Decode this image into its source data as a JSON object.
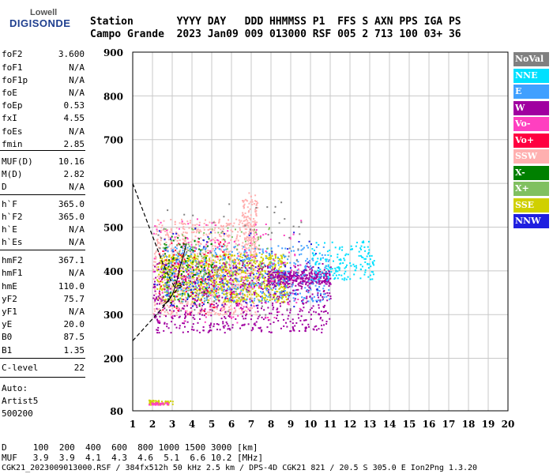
{
  "logo": {
    "top": "Lowell",
    "main": "DIGISONDE"
  },
  "header": {
    "row1": "Station       YYYY DAY   DDD HHMMSS P1  FFS S AXN PPS IGA PS",
    "row2": "Campo Grande  2023 Jan09 009 013000 RSF 005 2 713 100 03+ 36"
  },
  "params": [
    {
      "name": "foF2",
      "value": "3.600"
    },
    {
      "name": "foF1",
      "value": "N/A"
    },
    {
      "name": "foF1p",
      "value": "N/A"
    },
    {
      "name": "foE",
      "value": "N/A"
    },
    {
      "name": "foEp",
      "value": "0.53"
    },
    {
      "name": "fxI",
      "value": "4.55"
    },
    {
      "name": "foEs",
      "value": "N/A"
    },
    {
      "name": "fmin",
      "value": "2.85"
    },
    {
      "name": "MUF(D)",
      "value": "10.16"
    },
    {
      "name": "M(D)",
      "value": "2.82"
    },
    {
      "name": "D",
      "value": "N/A"
    },
    {
      "name": "h`F",
      "value": "365.0"
    },
    {
      "name": "h`F2",
      "value": "365.0"
    },
    {
      "name": "h`E",
      "value": "N/A"
    },
    {
      "name": "h`Es",
      "value": "N/A"
    },
    {
      "name": "hmF2",
      "value": "367.1"
    },
    {
      "name": "hmF1",
      "value": "N/A"
    },
    {
      "name": "hmE",
      "value": "110.0"
    },
    {
      "name": "yF2",
      "value": "75.7"
    },
    {
      "name": "yF1",
      "value": "N/A"
    },
    {
      "name": "yE",
      "value": "20.0"
    },
    {
      "name": "B0",
      "value": "87.5"
    },
    {
      "name": "B1",
      "value": "1.35"
    },
    {
      "name": "C-level",
      "value": "22"
    }
  ],
  "auto": {
    "line1": "Auto:",
    "line2": "Artist5",
    "line3": "500200"
  },
  "legend": [
    {
      "label": "NoVal",
      "color": "#808080"
    },
    {
      "label": "NNE",
      "color": "#00e0ff"
    },
    {
      "label": "E",
      "color": "#40a0ff"
    },
    {
      "label": "W",
      "color": "#a000a0"
    },
    {
      "label": "Vo-",
      "color": "#ff40c0"
    },
    {
      "label": "Vo+",
      "color": "#ff0040"
    },
    {
      "label": "SSW",
      "color": "#ffb0b0"
    },
    {
      "label": "X-",
      "color": "#008000"
    },
    {
      "label": "X+",
      "color": "#80c060"
    },
    {
      "label": "SSE",
      "color": "#d0d000"
    },
    {
      "label": "NNW",
      "color": "#2020e0"
    }
  ],
  "footer": {
    "row1": "D     100  200  400  600  800 1000 1500 3000 [km]",
    "row2": "MUF   3.9  3.9  4.1  4.3  4.6  5.1  6.6 10.2 [MHz]",
    "row3": "CGK21_2023009013000.RSF / 384fx512h 50 kHz 2.5 km / DPS-4D CGK21 821 / 20.5 S 305.0 E Ion2Png 1.3.20"
  },
  "chart_data": {
    "type": "scatter",
    "xlim": [
      1,
      20
    ],
    "ylim": [
      80,
      900
    ],
    "x_ticks": [
      1,
      2,
      3,
      4,
      5,
      6,
      7,
      8,
      9,
      10,
      11,
      12,
      13,
      14,
      15,
      16,
      17,
      18,
      19,
      20
    ],
    "y_ticks": [
      80,
      200,
      300,
      400,
      500,
      600,
      700,
      800,
      900
    ],
    "grid": true,
    "legend_position": "right",
    "x_tick_labels": [
      "1",
      "2",
      "3",
      "4",
      "5",
      "6",
      "7",
      "8",
      "9",
      "10",
      "11",
      "12",
      "13",
      "14",
      "15",
      "16",
      "17",
      "18",
      "19",
      "20"
    ],
    "y_tick_labels": [
      "80",
      "200",
      "300",
      "400",
      "500",
      "600",
      "700",
      "800",
      "900"
    ],
    "clusters": [
      {
        "color": "#ffb0b0",
        "xmin": 2.0,
        "xmax": 7.3,
        "ymin": 300,
        "ymax": 520,
        "n": 900
      },
      {
        "color": "#ffb0b0",
        "xmin": 6.5,
        "xmax": 7.3,
        "ymin": 440,
        "ymax": 580,
        "n": 120
      },
      {
        "color": "#d0d000",
        "xmin": 2.2,
        "xmax": 8.8,
        "ymin": 330,
        "ymax": 440,
        "n": 900
      },
      {
        "color": "#a000a0",
        "xmin": 2.0,
        "xmax": 11.0,
        "ymin": 260,
        "ymax": 420,
        "n": 700
      },
      {
        "color": "#a000a0",
        "xmin": 7.8,
        "xmax": 11.0,
        "ymin": 370,
        "ymax": 400,
        "n": 300
      },
      {
        "color": "#40a0ff",
        "xmin": 2.5,
        "xmax": 11.0,
        "ymin": 330,
        "ymax": 460,
        "n": 500
      },
      {
        "color": "#00e0ff",
        "xmin": 10.0,
        "xmax": 13.2,
        "ymin": 380,
        "ymax": 470,
        "n": 160
      },
      {
        "color": "#ff40c0",
        "xmin": 2.0,
        "xmax": 9.5,
        "ymin": 280,
        "ymax": 520,
        "n": 180
      },
      {
        "color": "#ff0040",
        "xmin": 2.3,
        "xmax": 6.0,
        "ymin": 300,
        "ymax": 470,
        "n": 90
      },
      {
        "color": "#808080",
        "xmin": 2.0,
        "xmax": 9.5,
        "ymin": 300,
        "ymax": 560,
        "n": 80
      },
      {
        "color": "#008000",
        "xmin": 2.5,
        "xmax": 5.0,
        "ymin": 320,
        "ymax": 480,
        "n": 90
      },
      {
        "color": "#80c060",
        "xmin": 2.5,
        "xmax": 8.0,
        "ymin": 330,
        "ymax": 500,
        "n": 120
      },
      {
        "color": "#2020e0",
        "xmin": 2.0,
        "xmax": 10.5,
        "ymin": 320,
        "ymax": 500,
        "n": 80
      },
      {
        "color": "#d0d000",
        "xmin": 1.8,
        "xmax": 3.0,
        "ymin": 95,
        "ymax": 106,
        "n": 50
      },
      {
        "color": "#ff40c0",
        "xmin": 1.8,
        "xmax": 2.8,
        "ymin": 95,
        "ymax": 100,
        "n": 30
      }
    ],
    "profile_line": [
      [
        1.0,
        600
      ],
      [
        1.5,
        540
      ],
      [
        2.0,
        480
      ],
      [
        2.5,
        420
      ],
      [
        2.9,
        380
      ],
      [
        3.1,
        365
      ],
      [
        3.4,
        366
      ],
      [
        3.6,
        368
      ]
    ],
    "lower_dashed": [
      [
        1.0,
        240
      ],
      [
        1.5,
        265
      ],
      [
        2.0,
        290
      ],
      [
        2.5,
        315
      ],
      [
        3.0,
        345
      ],
      [
        3.3,
        360
      ],
      [
        3.6,
        367
      ]
    ],
    "trace_line": [
      [
        2.5,
        320
      ],
      [
        2.8,
        330
      ],
      [
        3.0,
        345
      ],
      [
        3.2,
        370
      ],
      [
        3.4,
        410
      ],
      [
        3.6,
        440
      ],
      [
        3.7,
        460
      ]
    ]
  }
}
